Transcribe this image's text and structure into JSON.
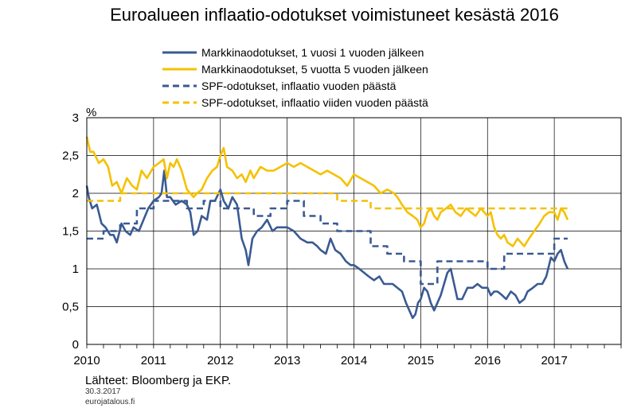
{
  "chart_data": {
    "type": "line",
    "title": "Euroalueen inflaatio-odotukset voimistuneet kesästä 2016",
    "ylabel": "%",
    "xlabel": "",
    "xlim": [
      2010.0,
      2018.0
    ],
    "ylim": [
      0,
      3
    ],
    "x_ticks": [
      "2010",
      "2011",
      "2012",
      "2013",
      "2014",
      "2015",
      "2016",
      "2017"
    ],
    "y_ticks": [
      "0",
      "0,5",
      "1",
      "1,5",
      "2",
      "2,5",
      "3"
    ],
    "grid": true,
    "legend_position": "top",
    "series": [
      {
        "name": "Markkinaodotukset, 1 vuosi 1 vuoden jälkeen",
        "color": "#3a5a92",
        "style": "solid",
        "x": [
          2010.0,
          2010.03,
          2010.08,
          2010.15,
          2010.22,
          2010.28,
          2010.35,
          2010.4,
          2010.45,
          2010.52,
          2010.58,
          2010.65,
          2010.7,
          2010.78,
          2010.85,
          2010.92,
          2011.0,
          2011.08,
          2011.12,
          2011.16,
          2011.2,
          2011.25,
          2011.33,
          2011.42,
          2011.5,
          2011.55,
          2011.6,
          2011.66,
          2011.72,
          2011.8,
          2011.85,
          2011.92,
          2012.0,
          2012.05,
          2012.12,
          2012.18,
          2012.25,
          2012.32,
          2012.38,
          2012.42,
          2012.48,
          2012.55,
          2012.62,
          2012.7,
          2012.78,
          2012.85,
          2012.92,
          2013.0,
          2013.1,
          2013.2,
          2013.3,
          2013.38,
          2013.45,
          2013.5,
          2013.58,
          2013.65,
          2013.72,
          2013.8,
          2013.88,
          2013.95,
          2014.0,
          2014.08,
          2014.15,
          2014.22,
          2014.3,
          2014.38,
          2014.45,
          2014.52,
          2014.58,
          2014.65,
          2014.72,
          2014.78,
          2014.83,
          2014.88,
          2014.92,
          2014.96,
          2015.0,
          2015.05,
          2015.1,
          2015.15,
          2015.2,
          2015.25,
          2015.3,
          2015.35,
          2015.4,
          2015.45,
          2015.5,
          2015.55,
          2015.62,
          2015.7,
          2015.78,
          2015.85,
          2015.92,
          2016.0,
          2016.05,
          2016.1,
          2016.15,
          2016.22,
          2016.28,
          2016.35,
          2016.42,
          2016.48,
          2016.55,
          2016.6,
          2016.68,
          2016.75,
          2016.82,
          2016.88,
          2016.95,
          2017.0,
          2017.05,
          2017.1,
          2017.15,
          2017.2
        ],
        "y": [
          2.1,
          1.95,
          1.8,
          1.85,
          1.6,
          1.55,
          1.45,
          1.45,
          1.35,
          1.6,
          1.5,
          1.45,
          1.55,
          1.5,
          1.65,
          1.8,
          1.9,
          1.95,
          2.0,
          2.3,
          1.95,
          1.95,
          1.85,
          1.9,
          1.85,
          1.75,
          1.45,
          1.5,
          1.7,
          1.65,
          1.9,
          1.9,
          2.05,
          1.9,
          1.8,
          1.95,
          1.85,
          1.4,
          1.25,
          1.05,
          1.4,
          1.5,
          1.55,
          1.65,
          1.5,
          1.55,
          1.55,
          1.55,
          1.5,
          1.4,
          1.35,
          1.35,
          1.3,
          1.25,
          1.2,
          1.4,
          1.25,
          1.2,
          1.1,
          1.05,
          1.05,
          1.0,
          0.95,
          0.9,
          0.85,
          0.9,
          0.8,
          0.8,
          0.8,
          0.75,
          0.7,
          0.55,
          0.45,
          0.35,
          0.4,
          0.55,
          0.6,
          0.75,
          0.7,
          0.55,
          0.45,
          0.55,
          0.65,
          0.8,
          0.95,
          1.0,
          0.8,
          0.6,
          0.6,
          0.75,
          0.75,
          0.8,
          0.75,
          0.75,
          0.65,
          0.7,
          0.7,
          0.65,
          0.6,
          0.7,
          0.65,
          0.55,
          0.6,
          0.7,
          0.75,
          0.8,
          0.8,
          0.9,
          1.15,
          1.1,
          1.2,
          1.25,
          1.1,
          1.0
        ]
      },
      {
        "name": "Markkinaodotukset, 5 vuotta 5 vuoden jälkeen",
        "color": "#f5c100",
        "style": "solid",
        "x": [
          2010.0,
          2010.05,
          2010.1,
          2010.18,
          2010.25,
          2010.32,
          2010.38,
          2010.45,
          2010.52,
          2010.6,
          2010.68,
          2010.75,
          2010.82,
          2010.9,
          2011.0,
          2011.08,
          2011.15,
          2011.2,
          2011.25,
          2011.3,
          2011.35,
          2011.42,
          2011.5,
          2011.55,
          2011.6,
          2011.65,
          2011.72,
          2011.8,
          2011.88,
          2011.95,
          2012.0,
          2012.05,
          2012.1,
          2012.18,
          2012.25,
          2012.32,
          2012.38,
          2012.45,
          2012.5,
          2012.6,
          2012.7,
          2012.8,
          2012.9,
          2013.0,
          2013.1,
          2013.2,
          2013.3,
          2013.4,
          2013.5,
          2013.6,
          2013.7,
          2013.8,
          2013.9,
          2014.0,
          2014.1,
          2014.2,
          2014.3,
          2014.4,
          2014.5,
          2014.6,
          2014.65,
          2014.72,
          2014.8,
          2014.88,
          2014.95,
          2015.0,
          2015.05,
          2015.1,
          2015.15,
          2015.2,
          2015.25,
          2015.3,
          2015.38,
          2015.45,
          2015.52,
          2015.6,
          2015.68,
          2015.75,
          2015.82,
          2015.9,
          2016.0,
          2016.05,
          2016.1,
          2016.15,
          2016.2,
          2016.25,
          2016.3,
          2016.38,
          2016.45,
          2016.5,
          2016.55,
          2016.62,
          2016.7,
          2016.78,
          2016.85,
          2016.92,
          2017.0,
          2017.05,
          2017.1,
          2017.15,
          2017.2
        ],
        "y": [
          2.75,
          2.55,
          2.55,
          2.4,
          2.45,
          2.35,
          2.1,
          2.15,
          2.0,
          2.2,
          2.1,
          2.05,
          2.3,
          2.2,
          2.35,
          2.4,
          2.45,
          2.2,
          2.4,
          2.35,
          2.45,
          2.3,
          2.05,
          2.0,
          1.95,
          2.0,
          2.05,
          2.2,
          2.3,
          2.35,
          2.5,
          2.6,
          2.35,
          2.3,
          2.2,
          2.25,
          2.15,
          2.3,
          2.2,
          2.35,
          2.3,
          2.3,
          2.35,
          2.4,
          2.35,
          2.4,
          2.35,
          2.3,
          2.25,
          2.3,
          2.25,
          2.2,
          2.1,
          2.25,
          2.2,
          2.15,
          2.1,
          2.0,
          2.05,
          2.0,
          1.95,
          1.85,
          1.75,
          1.7,
          1.65,
          1.55,
          1.6,
          1.75,
          1.8,
          1.7,
          1.65,
          1.75,
          1.8,
          1.85,
          1.75,
          1.7,
          1.8,
          1.75,
          1.7,
          1.8,
          1.7,
          1.75,
          1.55,
          1.45,
          1.4,
          1.45,
          1.35,
          1.3,
          1.4,
          1.35,
          1.3,
          1.4,
          1.5,
          1.6,
          1.7,
          1.75,
          1.75,
          1.65,
          1.8,
          1.75,
          1.65
        ]
      },
      {
        "name": "SPF-odotukset, inflaatio vuoden päästä",
        "color": "#3a5a92",
        "style": "dashed",
        "x": [
          2010.0,
          2010.25,
          2010.25,
          2010.5,
          2010.5,
          2010.75,
          2010.75,
          2011.0,
          2011.0,
          2011.5,
          2011.5,
          2011.75,
          2011.75,
          2012.0,
          2012.0,
          2012.25,
          2012.25,
          2012.5,
          2012.5,
          2012.75,
          2012.75,
          2013.0,
          2013.0,
          2013.25,
          2013.25,
          2013.5,
          2013.5,
          2013.75,
          2013.75,
          2014.0,
          2014.0,
          2014.25,
          2014.25,
          2014.5,
          2014.5,
          2014.75,
          2014.75,
          2015.0,
          2015.0,
          2015.25,
          2015.25,
          2015.5,
          2015.5,
          2015.75,
          2015.75,
          2016.0,
          2016.0,
          2016.25,
          2016.25,
          2016.5,
          2016.5,
          2016.75,
          2016.75,
          2017.0,
          2017.0,
          2017.2
        ],
        "y": [
          1.4,
          1.4,
          1.5,
          1.5,
          1.6,
          1.6,
          1.8,
          1.8,
          1.9,
          1.9,
          1.8,
          1.8,
          1.9,
          1.9,
          1.8,
          1.8,
          1.8,
          1.8,
          1.7,
          1.7,
          1.8,
          1.8,
          1.9,
          1.9,
          1.7,
          1.7,
          1.6,
          1.6,
          1.5,
          1.5,
          1.5,
          1.5,
          1.3,
          1.3,
          1.2,
          1.2,
          1.1,
          1.1,
          0.8,
          0.8,
          1.1,
          1.1,
          1.1,
          1.1,
          1.1,
          1.1,
          1.0,
          1.0,
          1.2,
          1.2,
          1.2,
          1.2,
          1.2,
          1.2,
          1.4,
          1.4
        ]
      },
      {
        "name": "SPF-odotukset, inflaatio viiden vuoden päästä",
        "color": "#f5c100",
        "style": "dashed",
        "x": [
          2010.0,
          2010.25,
          2010.25,
          2010.5,
          2010.5,
          2011.0,
          2011.0,
          2012.0,
          2012.0,
          2013.0,
          2013.0,
          2013.75,
          2013.75,
          2014.0,
          2014.0,
          2014.25,
          2014.25,
          2014.75,
          2014.75,
          2015.0,
          2015.0,
          2016.0,
          2016.0,
          2017.2
        ],
        "y": [
          1.9,
          1.9,
          1.9,
          1.9,
          2.0,
          2.0,
          2.0,
          2.0,
          2.0,
          2.0,
          2.0,
          2.0,
          1.9,
          1.9,
          1.9,
          1.9,
          1.8,
          1.8,
          1.8,
          1.8,
          1.8,
          1.8,
          1.8,
          1.8
        ]
      }
    ]
  },
  "footer": {
    "source": "Lähteet: Bloomberg ja EKP.",
    "date": "30.3.2017",
    "site": "eurojatalous.fi"
  }
}
